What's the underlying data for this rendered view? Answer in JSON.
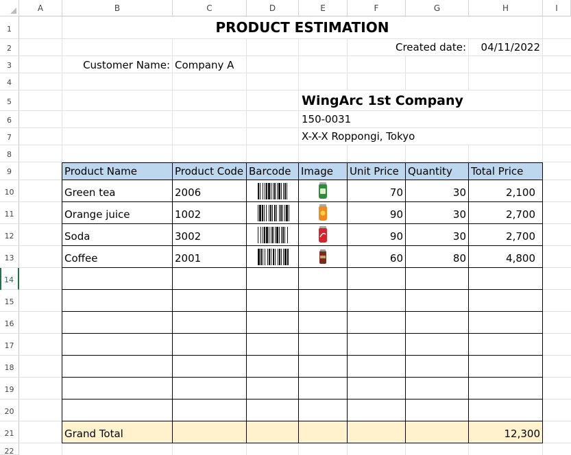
{
  "columns": [
    "A",
    "B",
    "C",
    "D",
    "E",
    "F",
    "G",
    "H",
    "I"
  ],
  "rows": [
    "1",
    "2",
    "3",
    "4",
    "5",
    "6",
    "7",
    "8",
    "9",
    "10",
    "11",
    "12",
    "13",
    "14",
    "15",
    "16",
    "17",
    "18",
    "19",
    "20",
    "21",
    "22"
  ],
  "active_row": "14",
  "title": "PRODUCT ESTIMATION",
  "created_date_label": "Created date:",
  "created_date_value": "04/11/2022",
  "customer_label": "Customer Name:",
  "customer_value": "Company A",
  "company_name": "WingArc 1st Company",
  "postal_code": "150-0031",
  "address": "X-X-X Roppongi, Tokyo",
  "table": {
    "headers": [
      "Product Name",
      "Product Code",
      "Barcode",
      "Image",
      "Unit Price",
      "Quantity",
      "Total Price"
    ],
    "rows": [
      {
        "name": "Green tea",
        "code": "2006",
        "unit": "70",
        "qty": "30",
        "total": "2,100",
        "can_color": "#2e8b3e"
      },
      {
        "name": "Orange juice",
        "code": "1002",
        "unit": "90",
        "qty": "30",
        "total": "2,700",
        "can_color": "#f08a1c"
      },
      {
        "name": "Soda",
        "code": "3002",
        "unit": "90",
        "qty": "30",
        "total": "2,700",
        "can_color": "#d8232a"
      },
      {
        "name": "Coffee",
        "code": "2001",
        "unit": "60",
        "qty": "80",
        "total": "4,800",
        "can_color": "#7a2b1e"
      }
    ],
    "grand_total_label": "Grand Total",
    "grand_total_value": "12,300"
  },
  "colors": {
    "header_fill": "#bdd7ee",
    "total_fill": "#fff2cc",
    "accent_green": "#217346"
  }
}
